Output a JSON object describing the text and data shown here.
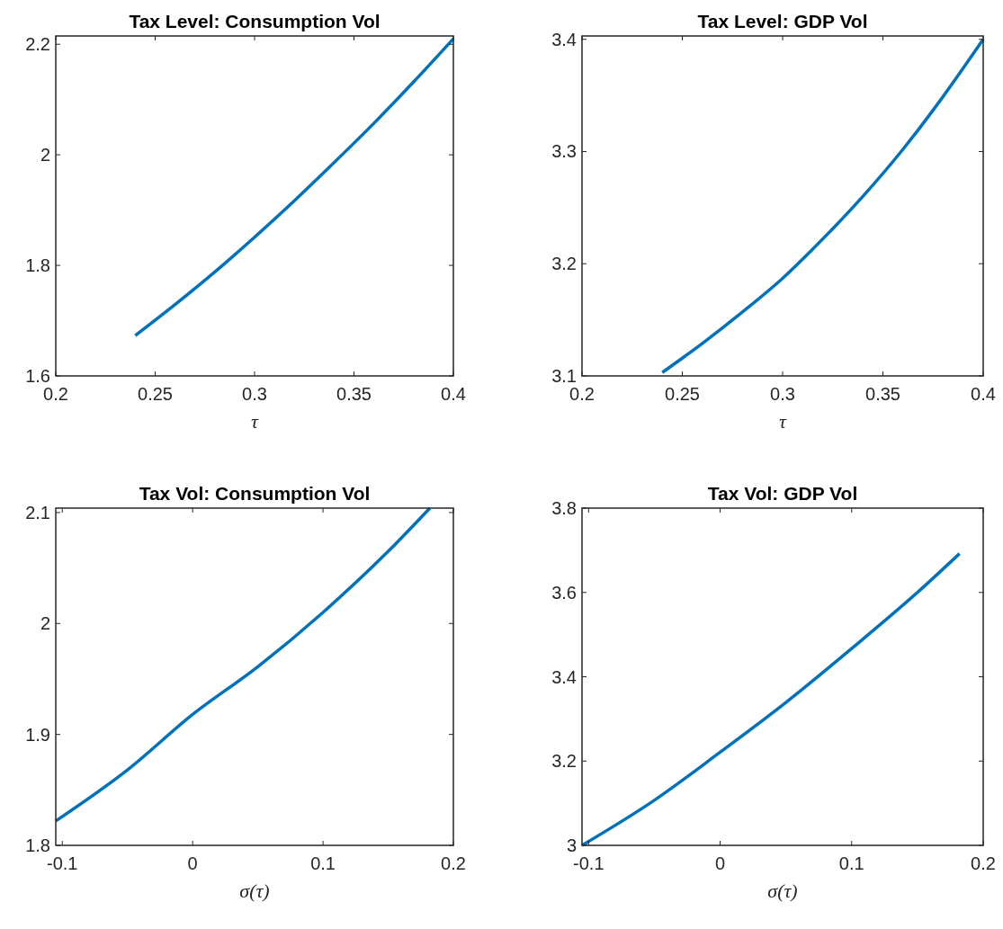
{
  "chart_data": [
    {
      "type": "line",
      "title": "Tax Level: Consumption Vol",
      "xlabel": "τ",
      "x": [
        0.24,
        0.26,
        0.28,
        0.3,
        0.32,
        0.34,
        0.36,
        0.38,
        0.4
      ],
      "values": [
        1.673,
        1.729,
        1.788,
        1.851,
        1.917,
        1.986,
        2.057,
        2.132,
        2.21
      ],
      "color": "#0072bd",
      "xlim": [
        0.2,
        0.4
      ],
      "xticks": [
        0.2,
        0.25,
        0.3,
        0.35,
        0.4
      ],
      "ylim": [
        1.6,
        2.215
      ],
      "yticks": [
        1.6,
        1.8,
        2,
        2.2
      ],
      "grid": false
    },
    {
      "type": "line",
      "title": "Tax Level: GDP Vol",
      "xlabel": "τ",
      "x": [
        0.24,
        0.26,
        0.28,
        0.3,
        0.32,
        0.34,
        0.36,
        0.38,
        0.4
      ],
      "values": [
        3.103,
        3.129,
        3.157,
        3.187,
        3.222,
        3.26,
        3.302,
        3.349,
        3.4
      ],
      "color": "#0072bd",
      "xlim": [
        0.2,
        0.4
      ],
      "xticks": [
        0.2,
        0.25,
        0.3,
        0.35,
        0.4
      ],
      "ylim": [
        3.1,
        3.403
      ],
      "yticks": [
        3.1,
        3.2,
        3.3,
        3.4
      ],
      "grid": false
    },
    {
      "type": "line",
      "title": "Tax Vol: Consumption Vol",
      "xlabel": "σ(τ)",
      "x": [
        -0.105,
        -0.05,
        0,
        0.05,
        0.1,
        0.15,
        0.182
      ],
      "values": [
        1.822,
        1.868,
        1.918,
        1.961,
        2.01,
        2.065,
        2.104
      ],
      "color": "#0072bd",
      "xlim": [
        -0.105,
        0.2
      ],
      "xticks": [
        -0.1,
        0,
        0.1,
        0.2
      ],
      "ylim": [
        1.8,
        2.104
      ],
      "yticks": [
        1.8,
        1.9,
        2,
        2.1
      ],
      "grid": false
    },
    {
      "type": "line",
      "title": "Tax Vol: GDP Vol",
      "xlabel": "σ(τ)",
      "x": [
        -0.105,
        -0.05,
        0,
        0.05,
        0.1,
        0.15,
        0.182
      ],
      "values": [
        3,
        3.107,
        3.221,
        3.339,
        3.467,
        3.6,
        3.692
      ],
      "color": "#0072bd",
      "xlim": [
        -0.105,
        0.2
      ],
      "xticks": [
        -0.1,
        0,
        0.1,
        0.2
      ],
      "ylim": [
        3,
        3.8
      ],
      "yticks": [
        3,
        3.2,
        3.4,
        3.6,
        3.8
      ],
      "grid": false
    }
  ]
}
